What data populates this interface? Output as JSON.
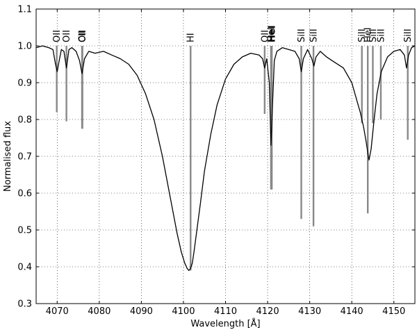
{
  "chart_data": {
    "type": "line",
    "title": "",
    "xlabel": "Wavelength [Å]",
    "ylabel": "Normalised flux",
    "xlim": [
      4065,
      4155
    ],
    "ylim": [
      0.3,
      1.1
    ],
    "xticks": [
      4070,
      4080,
      4090,
      4100,
      4110,
      4120,
      4130,
      4140,
      4150
    ],
    "yticks": [
      0.3,
      0.4,
      0.5,
      0.6,
      0.7,
      0.8,
      0.9,
      1.0,
      1.1
    ],
    "xtick_labels": [
      "4070",
      "4080",
      "4090",
      "4100",
      "4110",
      "4120",
      "4130",
      "4140",
      "4150"
    ],
    "ytick_labels": [
      "0.3",
      "0.4",
      "0.5",
      "0.6",
      "0.7",
      "0.8",
      "0.9",
      "1.0",
      "1.1"
    ],
    "grid": true,
    "colors": {
      "spectrum": "#000000",
      "line_markers": "#888888"
    },
    "series": [
      {
        "x": [
          4065.0,
          4066.5,
          4068.0,
          4069.0,
          4069.6,
          4070.0,
          4070.4,
          4071.0,
          4071.6,
          4072.2,
          4072.8,
          4073.5,
          4074.5,
          4075.3,
          4075.9,
          4076.5,
          4077.5,
          4079.0,
          4081.0,
          4083.0,
          4085.0,
          4087.0,
          4089.0,
          4091.0,
          4093.0,
          4095.0,
          4097.0,
          4098.5,
          4099.5,
          4100.3,
          4100.9,
          4101.3,
          4101.7,
          4102.1,
          4102.5,
          4103.2,
          4104.0,
          4105.0,
          4106.5,
          4108.0,
          4110.0,
          4112.0,
          4114.0,
          4116.0,
          4118.0,
          4118.8,
          4119.3,
          4119.8,
          4120.4,
          4120.8,
          4121.2,
          4121.6,
          4122.2,
          4123.5,
          4125.0,
          4126.5,
          4127.5,
          4128.0,
          4128.5,
          4129.5,
          4130.5,
          4131.0,
          4131.5,
          4132.5,
          4134.0,
          4136.0,
          4138.0,
          4140.0,
          4141.0,
          4142.0,
          4142.8,
          4143.4,
          4143.8,
          4144.1,
          4144.6,
          4145.3,
          4146.0,
          4147.0,
          4148.5,
          4150.0,
          4151.5,
          4152.5,
          4153.0,
          4153.5,
          4154.2,
          4155.0
        ],
        "values": [
          0.995,
          1.0,
          0.995,
          0.99,
          0.95,
          0.93,
          0.955,
          0.99,
          0.985,
          0.94,
          0.99,
          0.995,
          0.985,
          0.96,
          0.925,
          0.965,
          0.985,
          0.98,
          0.985,
          0.975,
          0.965,
          0.95,
          0.92,
          0.87,
          0.8,
          0.7,
          0.58,
          0.49,
          0.44,
          0.41,
          0.395,
          0.39,
          0.395,
          0.41,
          0.44,
          0.5,
          0.57,
          0.66,
          0.76,
          0.84,
          0.91,
          0.95,
          0.97,
          0.98,
          0.975,
          0.965,
          0.94,
          0.965,
          0.9,
          0.73,
          0.85,
          0.96,
          0.985,
          0.995,
          0.99,
          0.985,
          0.965,
          0.93,
          0.965,
          0.99,
          0.965,
          0.945,
          0.97,
          0.985,
          0.97,
          0.955,
          0.94,
          0.9,
          0.86,
          0.82,
          0.78,
          0.74,
          0.71,
          0.69,
          0.72,
          0.8,
          0.87,
          0.93,
          0.97,
          0.985,
          0.99,
          0.975,
          0.94,
          0.975,
          0.995,
          1.0
        ]
      }
    ],
    "line_ids": [
      {
        "label": "OII",
        "x": 4069.9,
        "bottom": 0.82,
        "bold": false
      },
      {
        "label": "OII",
        "x": 4072.2,
        "bottom": 0.795,
        "bold": false
      },
      {
        "label": "CII",
        "x": 4075.9,
        "bottom": 0.775,
        "bold": false
      },
      {
        "label": "OII",
        "x": 4076.0,
        "bottom": 0.775,
        "bold": false
      },
      {
        "label": "HI",
        "x": 4101.7,
        "bottom": 0.39,
        "bold": false
      },
      {
        "label": "OII",
        "x": 4119.3,
        "bottom": 0.815,
        "bold": false
      },
      {
        "label": "HeI",
        "x": 4120.8,
        "bottom": 0.61,
        "bold": false
      },
      {
        "label": "HeI",
        "x": 4121.0,
        "bottom": 0.61,
        "bold": true
      },
      {
        "label": "SiII",
        "x": 4128.0,
        "bottom": 0.53,
        "bold": false
      },
      {
        "label": "SiII",
        "x": 4130.9,
        "bottom": 0.51,
        "bold": false
      },
      {
        "label": "SiII",
        "x": 4142.4,
        "bottom": 0.79,
        "bold": false
      },
      {
        "label": "HeI",
        "x": 4143.8,
        "bottom": 0.545,
        "bold": false
      },
      {
        "label": "SiII",
        "x": 4145.0,
        "bottom": 0.79,
        "bold": false
      },
      {
        "label": "SiII",
        "x": 4146.9,
        "bottom": 0.8,
        "bold": false
      },
      {
        "label": "SiII",
        "x": 4153.3,
        "bottom": 0.745,
        "bold": false
      }
    ]
  }
}
